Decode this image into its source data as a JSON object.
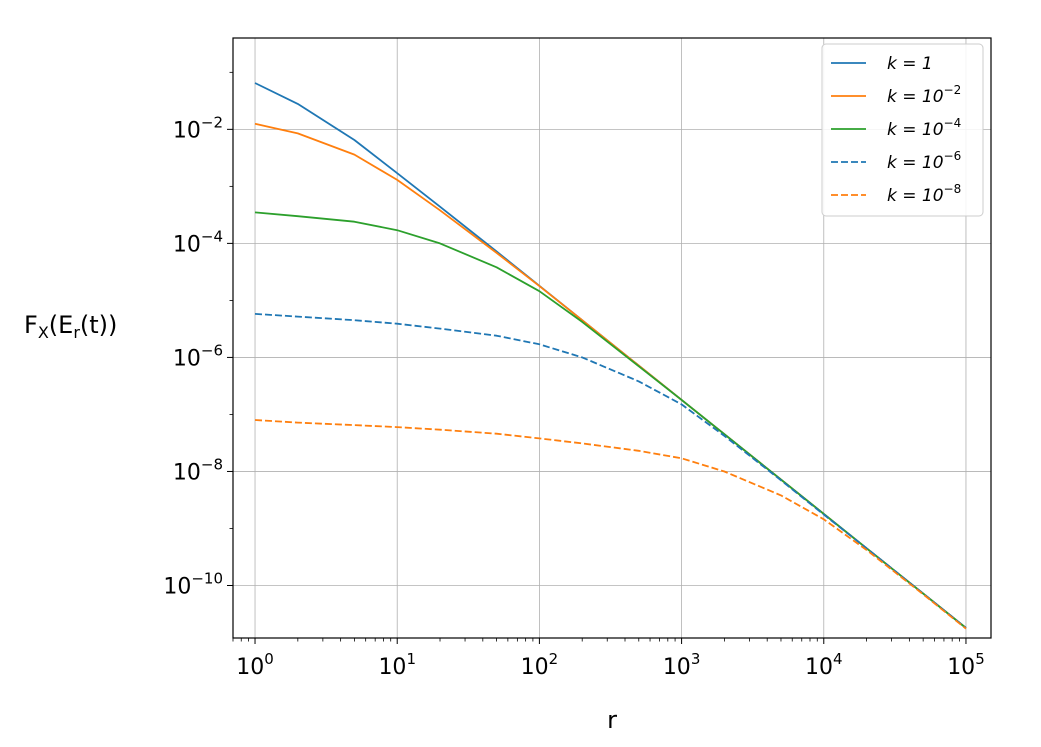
{
  "chart_data": {
    "type": "line",
    "xlabel": "r",
    "ylabel_parts": {
      "base": "F",
      "sub1": "X",
      "mid": "(E",
      "sub2": "r",
      "end": "(t))"
    },
    "xscale": "log",
    "yscale": "log",
    "xlim": [
      0.7,
      150000
    ],
    "ylim": [
      1.2e-11,
      0.4
    ],
    "grid": true,
    "legend_position": "top-right",
    "x_ticks": [
      {
        "value": 1,
        "base": "10",
        "exp": "0"
      },
      {
        "value": 10,
        "base": "10",
        "exp": "1"
      },
      {
        "value": 100,
        "base": "10",
        "exp": "2"
      },
      {
        "value": 1000,
        "base": "10",
        "exp": "3"
      },
      {
        "value": 10000,
        "base": "10",
        "exp": "4"
      },
      {
        "value": 100000,
        "base": "10",
        "exp": "5"
      }
    ],
    "y_ticks": [
      {
        "value": 1e-10,
        "base": "10",
        "exp": "−10"
      },
      {
        "value": 1e-08,
        "base": "10",
        "exp": "−8"
      },
      {
        "value": 1e-06,
        "base": "10",
        "exp": "−6"
      },
      {
        "value": 0.0001,
        "base": "10",
        "exp": "−4"
      },
      {
        "value": 0.01,
        "base": "10",
        "exp": "−2"
      }
    ],
    "x": [
      1,
      2,
      5,
      10,
      20,
      50,
      100,
      200,
      500,
      1000,
      2000,
      5000,
      10000,
      20000,
      50000,
      100000
    ],
    "series": [
      {
        "label_base": "k = 1",
        "label_exp": "",
        "color": "#1f77b4",
        "style": "solid",
        "values": [
          0.065,
          0.028,
          0.0065,
          0.0017,
          0.00044,
          7.2e-05,
          1.8e-05,
          4.5e-06,
          7.2e-07,
          1.8e-07,
          4.5e-08,
          7.2e-09,
          1.8e-09,
          4.5e-10,
          7.2e-11,
          1.8e-11
        ]
      },
      {
        "label_base": "k = 10",
        "label_exp": "−2",
        "color": "#ff7f0e",
        "style": "solid",
        "values": [
          0.0125,
          0.0085,
          0.0036,
          0.0013,
          0.00038,
          6.8e-05,
          1.78e-05,
          4.5e-06,
          7.2e-07,
          1.8e-07,
          4.5e-08,
          7.2e-09,
          1.8e-09,
          4.5e-10,
          7.2e-11,
          1.8e-11
        ]
      },
      {
        "label_base": "k = 10",
        "label_exp": "−4",
        "color": "#2ca02c",
        "style": "solid",
        "values": [
          0.00035,
          0.0003,
          0.00024,
          0.00017,
          0.0001,
          3.8e-05,
          1.45e-05,
          4.2e-06,
          7e-07,
          1.8e-07,
          4.5e-08,
          7.2e-09,
          1.8e-09,
          4.5e-10,
          7.2e-11,
          1.8e-11
        ]
      },
      {
        "label_base": "k = 10",
        "label_exp": "−6",
        "color": "#1f77b4",
        "style": "dashed",
        "values": [
          5.8e-06,
          5.2e-06,
          4.5e-06,
          3.9e-06,
          3.2e-06,
          2.4e-06,
          1.7e-06,
          1e-06,
          3.8e-07,
          1.5e-07,
          4.2e-08,
          7e-09,
          1.75e-09,
          4.5e-10,
          7.2e-11,
          1.8e-11
        ]
      },
      {
        "label_base": "k = 10",
        "label_exp": "−8",
        "color": "#ff7f0e",
        "style": "dashed",
        "values": [
          8e-08,
          7.2e-08,
          6.5e-08,
          6e-08,
          5.4e-08,
          4.6e-08,
          3.8e-08,
          3.1e-08,
          2.3e-08,
          1.7e-08,
          1e-08,
          3.8e-09,
          1.45e-09,
          4.2e-10,
          7e-11,
          1.75e-11
        ]
      }
    ]
  }
}
